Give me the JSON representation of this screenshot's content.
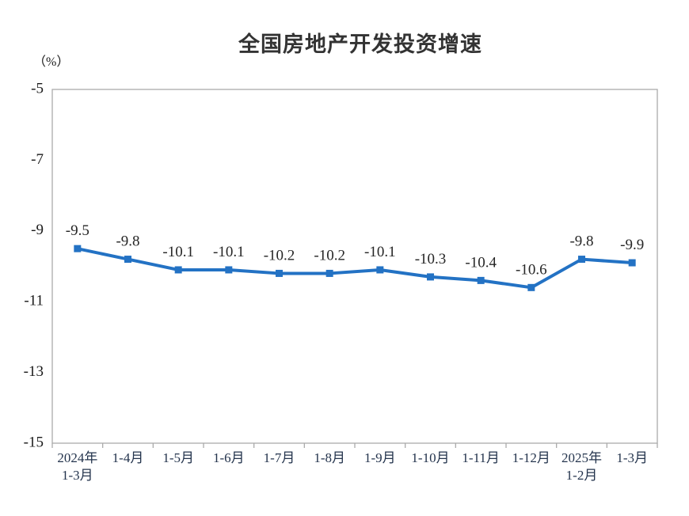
{
  "page": {
    "background_color": "#ffffff"
  },
  "chart_data": {
    "type": "line",
    "title": "全国房地产开发投资增速",
    "unit_label": "（%）",
    "categories": [
      "2024年\n1-3月",
      "1-4月",
      "1-5月",
      "1-6月",
      "1-7月",
      "1-8月",
      "1-9月",
      "1-10月",
      "1-11月",
      "1-12月",
      "2025年\n1-2月",
      "1-3月"
    ],
    "series": [
      {
        "name": "全国房地产开发投资增速",
        "values": [
          -9.5,
          -9.8,
          -10.1,
          -10.1,
          -10.2,
          -10.2,
          -10.1,
          -10.3,
          -10.4,
          -10.6,
          -9.8,
          -9.9
        ],
        "data_labels": [
          "-9.5",
          "-9.8",
          "-10.1",
          "-10.1",
          "-10.2",
          "-10.2",
          "-10.1",
          "-10.3",
          "-10.4",
          "-10.6",
          "-9.8",
          "-9.9"
        ]
      }
    ],
    "ylim": [
      -15,
      -5
    ],
    "yticks": [
      -5,
      -7,
      -9,
      -11,
      -13,
      -15
    ],
    "ytick_labels": [
      "-5",
      "-7",
      "-9",
      "-11",
      "-13",
      "-15"
    ],
    "grid": false,
    "legend_position": "none",
    "marker_shape": "square",
    "colors": {
      "line": "#2372C4",
      "marker": "#2372C4",
      "axis_border": "#ABABAB",
      "data_label": "#262626",
      "ytick_label": "#1a1a1a",
      "xtick_label": "#24344D",
      "title": "#333333"
    }
  }
}
